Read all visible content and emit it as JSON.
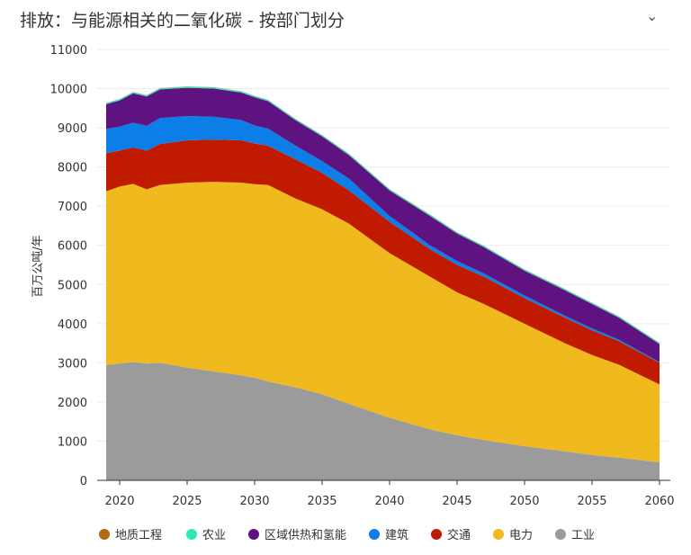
{
  "header": {
    "title": "排放：与能源相关的二氧化碳 - 按部门划分",
    "collapse_icon": "chevron-down-icon"
  },
  "chart_data": {
    "type": "area",
    "stacked": true,
    "title": "排放：与能源相关的二氧化碳 - 按部门划分",
    "xlabel": "",
    "ylabel": "百万公吨/年",
    "ylim": [
      0,
      11000
    ],
    "xlim": [
      2019,
      2060
    ],
    "yticks": [
      0,
      1000,
      2000,
      3000,
      4000,
      5000,
      6000,
      7000,
      8000,
      9000,
      10000,
      11000
    ],
    "xticks": [
      2020,
      2025,
      2030,
      2035,
      2040,
      2045,
      2050,
      2055,
      2060
    ],
    "grid": true,
    "legend_position": "bottom",
    "x": [
      2019,
      2020,
      2021,
      2022,
      2023,
      2025,
      2027,
      2029,
      2030,
      2031,
      2033,
      2035,
      2037,
      2040,
      2043,
      2045,
      2047,
      2050,
      2053,
      2055,
      2057,
      2060
    ],
    "series": [
      {
        "name": "工业",
        "color": "#9b9b9b",
        "values": [
          2950,
          2980,
          3020,
          2980,
          3000,
          2880,
          2780,
          2680,
          2620,
          2520,
          2380,
          2200,
          1950,
          1600,
          1300,
          1150,
          1030,
          870,
          740,
          650,
          580,
          460
        ]
      },
      {
        "name": "电力",
        "color": "#f0b91e",
        "values": [
          4430,
          4520,
          4550,
          4450,
          4540,
          4720,
          4840,
          4920,
          4940,
          5020,
          4820,
          4720,
          4600,
          4200,
          3900,
          3650,
          3470,
          3130,
          2760,
          2550,
          2370,
          1990
        ]
      },
      {
        "name": "交通",
        "color": "#c01b00",
        "values": [
          970,
          920,
          930,
          990,
          1050,
          1080,
          1080,
          1080,
          1040,
          1000,
          1000,
          930,
          850,
          800,
          700,
          700,
          700,
          650,
          650,
          630,
          600,
          550
        ]
      },
      {
        "name": "建筑",
        "color": "#0c7ee8",
        "values": [
          620,
          610,
          630,
          630,
          660,
          620,
          580,
          520,
          460,
          440,
          350,
          300,
          300,
          150,
          100,
          100,
          80,
          70,
          50,
          50,
          40,
          20
        ]
      },
      {
        "name": "区域供热和氢能",
        "color": "#5e1380",
        "values": [
          630,
          670,
          750,
          750,
          730,
          720,
          720,
          700,
          720,
          700,
          650,
          630,
          600,
          650,
          750,
          700,
          670,
          630,
          650,
          620,
          560,
          460
        ]
      },
      {
        "name": "农业",
        "color": "#2de8b4",
        "values": [
          30,
          30,
          30,
          30,
          30,
          30,
          30,
          30,
          30,
          30,
          30,
          30,
          30,
          30,
          30,
          30,
          30,
          30,
          30,
          30,
          30,
          30
        ]
      },
      {
        "name": "地质工程",
        "color": "#b06a10",
        "values": [
          5,
          5,
          5,
          5,
          5,
          5,
          5,
          5,
          5,
          5,
          5,
          5,
          5,
          5,
          5,
          5,
          5,
          5,
          5,
          5,
          5,
          5
        ]
      }
    ],
    "legend_order": [
      "地质工程",
      "农业",
      "区域供热和氢能",
      "建筑",
      "交通",
      "电力",
      "工业"
    ]
  }
}
